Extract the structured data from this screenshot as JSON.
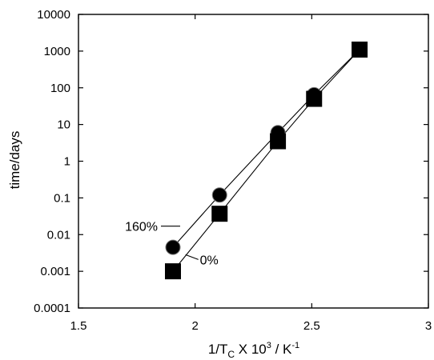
{
  "chart_data": {
    "type": "scatter",
    "xlabel": "1/T",
    "xlabel_subscript": "C",
    "xlabel_mid": " X 10",
    "xlabel_superscript": "3",
    "xlabel_tail": " / K",
    "xlabel_unit_superscript": "-1",
    "ylabel": "time/days",
    "xlim": [
      1.5,
      3
    ],
    "ylim": [
      0.0001,
      10000
    ],
    "y_scale": "log",
    "x_ticks": [
      {
        "value": 1.5,
        "label": "1.5"
      },
      {
        "value": 2,
        "label": "2"
      },
      {
        "value": 2.5,
        "label": "2.5"
      },
      {
        "value": 3,
        "label": "3"
      }
    ],
    "y_ticks": [
      {
        "value": 0.0001,
        "label": "0.0001"
      },
      {
        "value": 0.001,
        "label": "0.001"
      },
      {
        "value": 0.01,
        "label": "0.01"
      },
      {
        "value": 0.1,
        "label": "0.1"
      },
      {
        "value": 1,
        "label": "1"
      },
      {
        "value": 10,
        "label": "10"
      },
      {
        "value": 100,
        "label": "100"
      },
      {
        "value": 1000,
        "label": "1000"
      },
      {
        "value": 10000,
        "label": "10000"
      }
    ],
    "grid": false,
    "series": [
      {
        "name": "160%",
        "marker": "circle",
        "x": [
          1.905,
          2.105,
          2.355,
          2.51,
          2.705
        ],
        "y": [
          0.0045,
          0.12,
          6,
          65,
          1100
        ]
      },
      {
        "name": "0%",
        "marker": "square",
        "x": [
          1.905,
          2.105,
          2.355,
          2.51,
          2.705
        ],
        "y": [
          0.001,
          0.037,
          3.5,
          50,
          1100
        ]
      }
    ]
  }
}
